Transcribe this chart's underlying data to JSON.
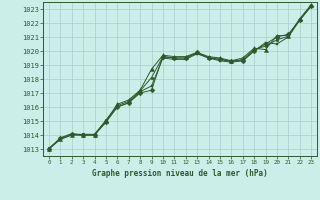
{
  "title": "Graphe pression niveau de la mer (hPa)",
  "bg_color": "#cceee8",
  "grid_color": "#aacccc",
  "line_color": "#2d5a2d",
  "xlim": [
    -0.5,
    23.5
  ],
  "ylim": [
    1012.5,
    1023.5
  ],
  "yticks": [
    1013,
    1014,
    1015,
    1016,
    1017,
    1018,
    1019,
    1020,
    1021,
    1022,
    1023
  ],
  "xticks": [
    0,
    1,
    2,
    3,
    4,
    5,
    6,
    7,
    8,
    9,
    10,
    11,
    12,
    13,
    14,
    15,
    16,
    17,
    18,
    19,
    20,
    21,
    22,
    23
  ],
  "series": [
    {
      "x": [
        0,
        1,
        2,
        3,
        4,
        5,
        6,
        7,
        8,
        9,
        10,
        11,
        12,
        13,
        14,
        15,
        16,
        17,
        18,
        19,
        20,
        21,
        22,
        23
      ],
      "y": [
        1013.0,
        1013.8,
        1014.1,
        1014.0,
        1014.0,
        1014.9,
        1016.0,
        1016.3,
        1017.0,
        1017.2,
        1019.6,
        1019.5,
        1019.5,
        1019.9,
        1019.5,
        1019.4,
        1019.3,
        1019.3,
        1020.0,
        1020.5,
        1021.0,
        1021.2,
        1022.2,
        1023.2
      ],
      "marker": "D",
      "markersize": 2.5
    },
    {
      "x": [
        0,
        1,
        2,
        3,
        4,
        5,
        6,
        7,
        8,
        9,
        10,
        11,
        12,
        13,
        14,
        15,
        16,
        17,
        18,
        19,
        20,
        21,
        22,
        23
      ],
      "y": [
        1013.0,
        1013.7,
        1014.0,
        1014.0,
        1014.0,
        1015.0,
        1016.2,
        1016.5,
        1017.2,
        1018.7,
        1019.7,
        1019.6,
        1019.6,
        1019.9,
        1019.6,
        1019.5,
        1019.3,
        1019.5,
        1020.2,
        1020.1,
        1021.1,
        1021.1,
        1022.3,
        1023.3
      ],
      "marker": "^",
      "markersize": 3
    },
    {
      "x": [
        0,
        1,
        2,
        3,
        4,
        5,
        6,
        7,
        8,
        9,
        10,
        11,
        12,
        13,
        14,
        15,
        16,
        17,
        18,
        19,
        20,
        21,
        22,
        23
      ],
      "y": [
        1013.0,
        1013.7,
        1014.0,
        1014.0,
        1014.0,
        1015.0,
        1016.0,
        1016.3,
        1017.1,
        1017.5,
        1019.5,
        1019.4,
        1019.4,
        1019.8,
        1019.5,
        1019.3,
        1019.2,
        1019.3,
        1020.0,
        1020.6,
        1020.5,
        1021.0,
        1022.2,
        1023.2
      ],
      "marker": "s",
      "markersize": 2
    },
    {
      "x": [
        0,
        1,
        2,
        3,
        4,
        5,
        6,
        7,
        8,
        9,
        10,
        11,
        12,
        13,
        14,
        15,
        16,
        17,
        18,
        19,
        20,
        21,
        22,
        23
      ],
      "y": [
        1013.05,
        1013.75,
        1014.05,
        1014.05,
        1014.05,
        1015.05,
        1016.1,
        1016.4,
        1017.15,
        1018.1,
        1019.6,
        1019.5,
        1019.5,
        1019.85,
        1019.55,
        1019.4,
        1019.25,
        1019.4,
        1020.1,
        1020.35,
        1020.8,
        1021.05,
        1022.25,
        1023.25
      ],
      "marker": "o",
      "markersize": 2
    }
  ]
}
